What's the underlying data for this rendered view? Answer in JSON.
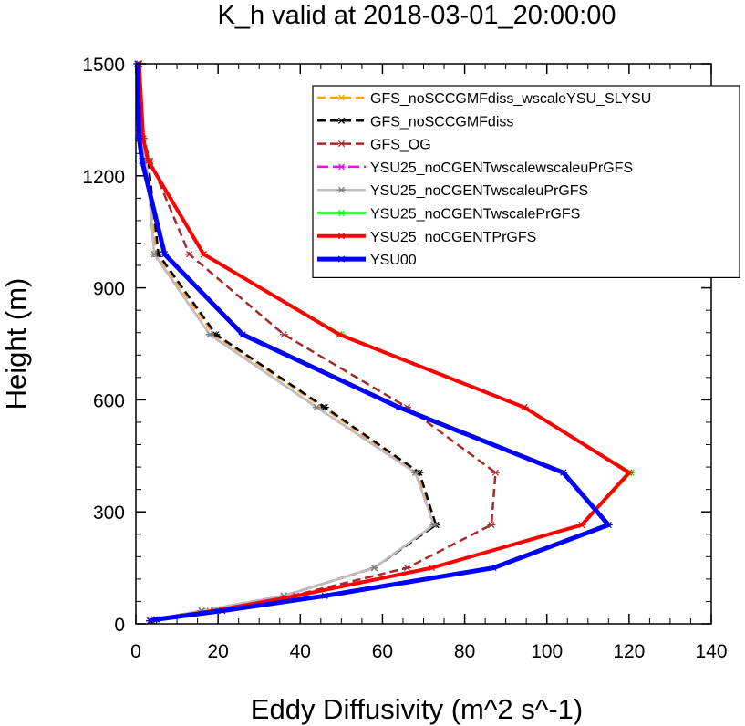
{
  "chart_data": {
    "type": "line",
    "title": "K_h valid at 2018-03-01_20:00:00",
    "xlabel": "Eddy Diffusivity (m^2 s^-1)",
    "ylabel": "Height (m)",
    "xlim": [
      0,
      140
    ],
    "ylim": [
      0,
      1500
    ],
    "xticks": [
      0,
      20,
      40,
      60,
      80,
      100,
      120,
      140
    ],
    "yticks": [
      0,
      300,
      600,
      900,
      1200,
      1500
    ],
    "xtick_labels": [
      "0",
      "20",
      "40",
      "60",
      "80",
      "100",
      "120",
      "140"
    ],
    "ytick_labels": [
      "0",
      "300",
      "600",
      "900",
      "1200",
      "1500"
    ],
    "legend_position": "top-right",
    "grid": false,
    "series": [
      {
        "name": "GFS_noSCCGMFdiss_wscaleYSU_SLYSU",
        "color": "#ffa500",
        "dash": "dashed",
        "width": 2.5,
        "points": [
          [
            3.5,
            8
          ],
          [
            4.5,
            12
          ],
          [
            16,
            35
          ],
          [
            36,
            75
          ],
          [
            58,
            150
          ],
          [
            73,
            265
          ],
          [
            68.5,
            405
          ],
          [
            45.5,
            580
          ],
          [
            19,
            775
          ],
          [
            5,
            990
          ],
          [
            3,
            1240
          ],
          [
            1.5,
            1300
          ],
          [
            0.8,
            1500
          ]
        ]
      },
      {
        "name": "GFS_noSCCGMFdiss",
        "color": "#000000",
        "dash": "dashed",
        "width": 2.5,
        "points": [
          [
            3.5,
            8
          ],
          [
            4.5,
            12
          ],
          [
            16,
            35
          ],
          [
            36,
            75
          ],
          [
            58,
            150
          ],
          [
            73,
            265
          ],
          [
            69,
            405
          ],
          [
            46,
            580
          ],
          [
            19.5,
            775
          ],
          [
            5.5,
            990
          ],
          [
            3,
            1240
          ],
          [
            1.5,
            1300
          ],
          [
            0.8,
            1500
          ]
        ]
      },
      {
        "name": "GFS_OG",
        "color": "#a52a2a",
        "dash": "dashed",
        "width": 2.5,
        "points": [
          [
            4,
            8
          ],
          [
            5,
            12
          ],
          [
            18,
            35
          ],
          [
            38,
            75
          ],
          [
            66,
            150
          ],
          [
            86.5,
            265
          ],
          [
            87.5,
            405
          ],
          [
            66,
            580
          ],
          [
            36,
            775
          ],
          [
            13,
            990
          ],
          [
            3.5,
            1240
          ],
          [
            1.8,
            1300
          ],
          [
            0.8,
            1500
          ]
        ]
      },
      {
        "name": "YSU25_noCGENTwscalewscaleuPrGFS",
        "color": "#ff00ff",
        "dash": "longdash",
        "width": 2.5,
        "points": [
          [
            3.5,
            8
          ],
          [
            4.5,
            12
          ],
          [
            16,
            35
          ],
          [
            36,
            75
          ],
          [
            58,
            150
          ],
          [
            72.5,
            265
          ],
          [
            68,
            405
          ],
          [
            44,
            580
          ],
          [
            18,
            775
          ],
          [
            4.5,
            990
          ],
          [
            2.5,
            1240
          ],
          [
            1.2,
            1300
          ],
          [
            0.6,
            1500
          ]
        ]
      },
      {
        "name": "YSU25_noCGENTwscaleuPrGFS",
        "color": "#bebebe",
        "dash": "solid",
        "width": 2.5,
        "points": [
          [
            3.5,
            8
          ],
          [
            4.5,
            12
          ],
          [
            16,
            35
          ],
          [
            36,
            75
          ],
          [
            58,
            150
          ],
          [
            72.5,
            265
          ],
          [
            68,
            405
          ],
          [
            44,
            580
          ],
          [
            18,
            775
          ],
          [
            4.5,
            990
          ],
          [
            2.5,
            1240
          ],
          [
            1.2,
            1300
          ],
          [
            0.6,
            1500
          ]
        ]
      },
      {
        "name": "YSU25_noCGENTwscalePrGFS",
        "color": "#00ff00",
        "dash": "solid",
        "width": 2.5,
        "points": [
          [
            3.5,
            8
          ],
          [
            5,
            12
          ],
          [
            19,
            35
          ],
          [
            39,
            75
          ],
          [
            72,
            150
          ],
          [
            108.5,
            265
          ],
          [
            120.5,
            405
          ],
          [
            94.5,
            580
          ],
          [
            50,
            775
          ],
          [
            16.5,
            990
          ],
          [
            3,
            1240
          ],
          [
            1.8,
            1300
          ],
          [
            0.8,
            1500
          ]
        ]
      },
      {
        "name": "YSU25_noCGENTPrGFS",
        "color": "#ff0000",
        "dash": "solid",
        "width": 4,
        "points": [
          [
            3.5,
            8
          ],
          [
            5,
            12
          ],
          [
            19,
            35
          ],
          [
            39,
            75
          ],
          [
            72,
            150
          ],
          [
            108.5,
            265
          ],
          [
            120,
            405
          ],
          [
            94.5,
            580
          ],
          [
            49.5,
            775
          ],
          [
            16.5,
            990
          ],
          [
            3,
            1240
          ],
          [
            1.8,
            1300
          ],
          [
            0.8,
            1500
          ]
        ]
      },
      {
        "name": "YSU00",
        "color": "#0000ff",
        "dash": "solid",
        "width": 5,
        "points": [
          [
            3.5,
            8
          ],
          [
            5,
            12
          ],
          [
            21,
            35
          ],
          [
            46,
            75
          ],
          [
            87,
            150
          ],
          [
            115,
            265
          ],
          [
            104,
            405
          ],
          [
            64,
            580
          ],
          [
            26,
            775
          ],
          [
            7,
            990
          ],
          [
            1.5,
            1240
          ],
          [
            0.8,
            1300
          ],
          [
            0.4,
            1500
          ]
        ]
      }
    ]
  }
}
